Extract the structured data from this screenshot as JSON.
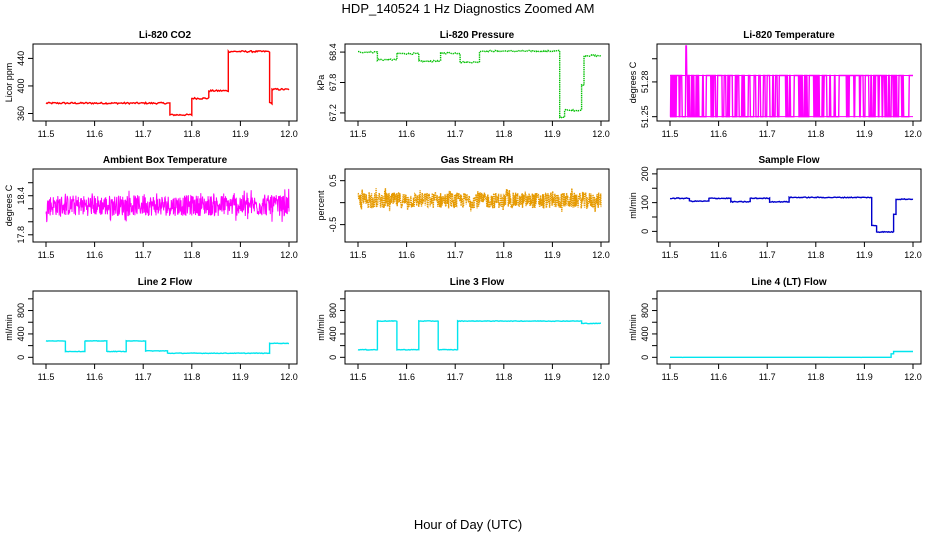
{
  "figure": {
    "title": "HDP_140524  1 Hz Diagnostics Zoomed AM",
    "xlabel": "Hour of Day (UTC)"
  },
  "chart_data": [
    {
      "type": "line",
      "title": "Li-820 CO2",
      "ylabel": "Licor ppm",
      "color": "#ff0000",
      "xlim": [
        11.5,
        12.0
      ],
      "ylim": [
        352,
        458
      ],
      "xticks": [
        "11.5",
        "11.6",
        "11.7",
        "11.8",
        "11.9",
        "12.0"
      ],
      "yticks": [
        {
          "v": 360,
          "label": "360"
        },
        {
          "v": 400,
          "label": "400"
        },
        {
          "v": 440,
          "label": "440"
        }
      ],
      "segments": [
        [
          11.5,
          11.755,
          375
        ],
        [
          11.755,
          11.8,
          358
        ],
        [
          11.8,
          11.835,
          382
        ],
        [
          11.835,
          11.875,
          393
        ],
        [
          11.875,
          11.96,
          450
        ],
        [
          11.96,
          11.965,
          375
        ],
        [
          11.965,
          12.0,
          395
        ]
      ],
      "noise": 1.2,
      "clamp": [
        352,
        458
      ],
      "style": "step"
    },
    {
      "type": "line",
      "title": "Li-820 Pressure",
      "ylabel": "kPa",
      "color": "#00c000",
      "xlim": [
        11.5,
        12.0
      ],
      "ylim": [
        67.08,
        68.52
      ],
      "xticks": [
        "11.5",
        "11.6",
        "11.7",
        "11.8",
        "11.9",
        "12.0"
      ],
      "yticks": [
        {
          "v": 67.2,
          "label": "67.2"
        },
        {
          "v": 67.8,
          "label": "67.8"
        },
        {
          "v": 68.4,
          "label": "68.4"
        }
      ],
      "segments": [
        [
          11.5,
          11.54,
          68.4
        ],
        [
          11.54,
          11.58,
          68.25
        ],
        [
          11.58,
          11.625,
          68.37
        ],
        [
          11.625,
          11.67,
          68.22
        ],
        [
          11.67,
          11.71,
          68.38
        ],
        [
          11.71,
          11.75,
          68.2
        ],
        [
          11.75,
          11.915,
          68.42
        ],
        [
          11.915,
          11.925,
          67.12
        ],
        [
          11.925,
          11.96,
          67.25
        ],
        [
          11.96,
          11.965,
          67.75
        ],
        [
          11.965,
          12.0,
          68.33
        ]
      ],
      "noise": 0.015,
      "clamp": [
        67.08,
        68.52
      ],
      "style": "dotted"
    },
    {
      "type": "line",
      "title": "Li-820 Temperature",
      "ylabel": "degrees C",
      "color": "#ff00ff",
      "xlim": [
        11.5,
        12.0
      ],
      "ylim": [
        51.248,
        51.311
      ],
      "xticks": [
        "11.5",
        "11.6",
        "11.7",
        "11.8",
        "11.9",
        "12.0"
      ],
      "yticks": [
        {
          "v": 51.25,
          "label": "51.25"
        },
        {
          "v": 51.28,
          "label": "51.28"
        },
        {
          "v": 51.3,
          "label": ""
        }
      ],
      "levels": [
        51.25,
        51.2855
      ],
      "spike": [
        11.532,
        51.311
      ],
      "noise": 0,
      "clamp": [
        51.248,
        51.311
      ],
      "style": "binary"
    },
    {
      "type": "line",
      "title": "Ambient Box Temperature",
      "ylabel": "degrees C",
      "color": "#ff00ff",
      "xlim": [
        11.5,
        12.0
      ],
      "ylim": [
        17.72,
        18.78
      ],
      "xticks": [
        "11.5",
        "11.6",
        "11.7",
        "11.8",
        "11.9",
        "12.0"
      ],
      "yticks": [
        {
          "v": 17.8,
          "label": "17.8"
        },
        {
          "v": 18.0,
          "label": ""
        },
        {
          "v": 18.2,
          "label": ""
        },
        {
          "v": 18.4,
          "label": "18.4"
        },
        {
          "v": 18.6,
          "label": ""
        }
      ],
      "segments": [
        [
          11.5,
          12.0,
          18.25
        ]
      ],
      "noise": 0.16,
      "clamp": [
        17.76,
        18.72
      ],
      "style": "noise"
    },
    {
      "type": "line",
      "title": "Gas Stream RH",
      "ylabel": "percent",
      "color": "#e69a00",
      "xlim": [
        11.5,
        12.0
      ],
      "ylim": [
        -0.85,
        0.72
      ],
      "xticks": [
        "11.5",
        "11.6",
        "11.7",
        "11.8",
        "11.9",
        "12.0"
      ],
      "yticks": [
        {
          "v": -0.5,
          "label": "-0.5"
        },
        {
          "v": 0.0,
          "label": ""
        },
        {
          "v": 0.5,
          "label": "0.5"
        }
      ],
      "segments": [
        [
          11.5,
          12.0,
          0.05
        ]
      ],
      "noise": 0.18,
      "clamp": [
        -0.8,
        0.65
      ],
      "style": "noise-dotted"
    },
    {
      "type": "line",
      "title": "Sample Flow",
      "ylabel": "ml/min",
      "color": "#0000cc",
      "xlim": [
        11.5,
        12.0
      ],
      "ylim": [
        -30,
        210
      ],
      "xticks": [
        "11.5",
        "11.6",
        "11.7",
        "11.8",
        "11.9",
        "12.0"
      ],
      "yticks": [
        {
          "v": 0,
          "label": "0"
        },
        {
          "v": 50,
          "label": ""
        },
        {
          "v": 100,
          "label": "100"
        },
        {
          "v": 150,
          "label": ""
        },
        {
          "v": 200,
          "label": "200"
        }
      ],
      "segments": [
        [
          11.5,
          11.54,
          115
        ],
        [
          11.54,
          11.58,
          105
        ],
        [
          11.58,
          11.625,
          115
        ],
        [
          11.625,
          11.665,
          103
        ],
        [
          11.665,
          11.705,
          115
        ],
        [
          11.705,
          11.745,
          103
        ],
        [
          11.745,
          11.915,
          118
        ],
        [
          11.915,
          11.925,
          20
        ],
        [
          11.925,
          11.96,
          -2
        ],
        [
          11.96,
          11.965,
          60
        ],
        [
          11.965,
          12.0,
          112
        ]
      ],
      "noise": 1.5,
      "clamp": [
        -30,
        210
      ],
      "style": "step"
    },
    {
      "type": "line",
      "title": "Line 2 Flow",
      "ylabel": "ml/min",
      "color": "#00e5ee",
      "xlim": [
        11.5,
        12.0
      ],
      "ylim": [
        -80,
        1100
      ],
      "xticks": [
        "11.5",
        "11.6",
        "11.7",
        "11.8",
        "11.9",
        "12.0"
      ],
      "yticks": [
        {
          "v": 0,
          "label": "0"
        },
        {
          "v": 200,
          "label": ""
        },
        {
          "v": 400,
          "label": "400"
        },
        {
          "v": 600,
          "label": ""
        },
        {
          "v": 800,
          "label": "800"
        },
        {
          "v": 1000,
          "label": ""
        }
      ],
      "segments": [
        [
          11.5,
          11.54,
          280
        ],
        [
          11.54,
          11.58,
          100
        ],
        [
          11.58,
          11.625,
          280
        ],
        [
          11.625,
          11.665,
          100
        ],
        [
          11.665,
          11.705,
          280
        ],
        [
          11.705,
          11.75,
          110
        ],
        [
          11.75,
          11.96,
          70
        ],
        [
          11.96,
          12.0,
          240
        ]
      ],
      "noise": 4,
      "clamp": [
        -80,
        1100
      ],
      "style": "step"
    },
    {
      "type": "line",
      "title": "Line 3 Flow",
      "ylabel": "ml/min",
      "color": "#00e5ee",
      "xlim": [
        11.5,
        12.0
      ],
      "ylim": [
        -80,
        1100
      ],
      "xticks": [
        "11.5",
        "11.6",
        "11.7",
        "11.8",
        "11.9",
        "12.0"
      ],
      "yticks": [
        {
          "v": 0,
          "label": "0"
        },
        {
          "v": 200,
          "label": ""
        },
        {
          "v": 400,
          "label": "400"
        },
        {
          "v": 600,
          "label": ""
        },
        {
          "v": 800,
          "label": "800"
        },
        {
          "v": 1000,
          "label": ""
        }
      ],
      "segments": [
        [
          11.5,
          11.54,
          130
        ],
        [
          11.54,
          11.58,
          620
        ],
        [
          11.58,
          11.625,
          130
        ],
        [
          11.625,
          11.665,
          620
        ],
        [
          11.665,
          11.705,
          130
        ],
        [
          11.705,
          11.96,
          620
        ],
        [
          11.96,
          12.0,
          580
        ]
      ],
      "noise": 5,
      "clamp": [
        -80,
        1100
      ],
      "style": "step"
    },
    {
      "type": "line",
      "title": "Line 4 (LT) Flow",
      "ylabel": "ml/min",
      "color": "#00e5ee",
      "xlim": [
        11.5,
        12.0
      ],
      "ylim": [
        -80,
        1100
      ],
      "xticks": [
        "11.5",
        "11.6",
        "11.7",
        "11.8",
        "11.9",
        "12.0"
      ],
      "yticks": [
        {
          "v": 0,
          "label": "0"
        },
        {
          "v": 200,
          "label": ""
        },
        {
          "v": 400,
          "label": "400"
        },
        {
          "v": 600,
          "label": ""
        },
        {
          "v": 800,
          "label": "800"
        },
        {
          "v": 1000,
          "label": ""
        }
      ],
      "segments": [
        [
          11.5,
          11.955,
          0
        ],
        [
          11.955,
          11.96,
          60
        ],
        [
          11.96,
          12.0,
          100
        ]
      ],
      "noise": 0.5,
      "clamp": [
        -80,
        1100
      ],
      "style": "step"
    }
  ]
}
